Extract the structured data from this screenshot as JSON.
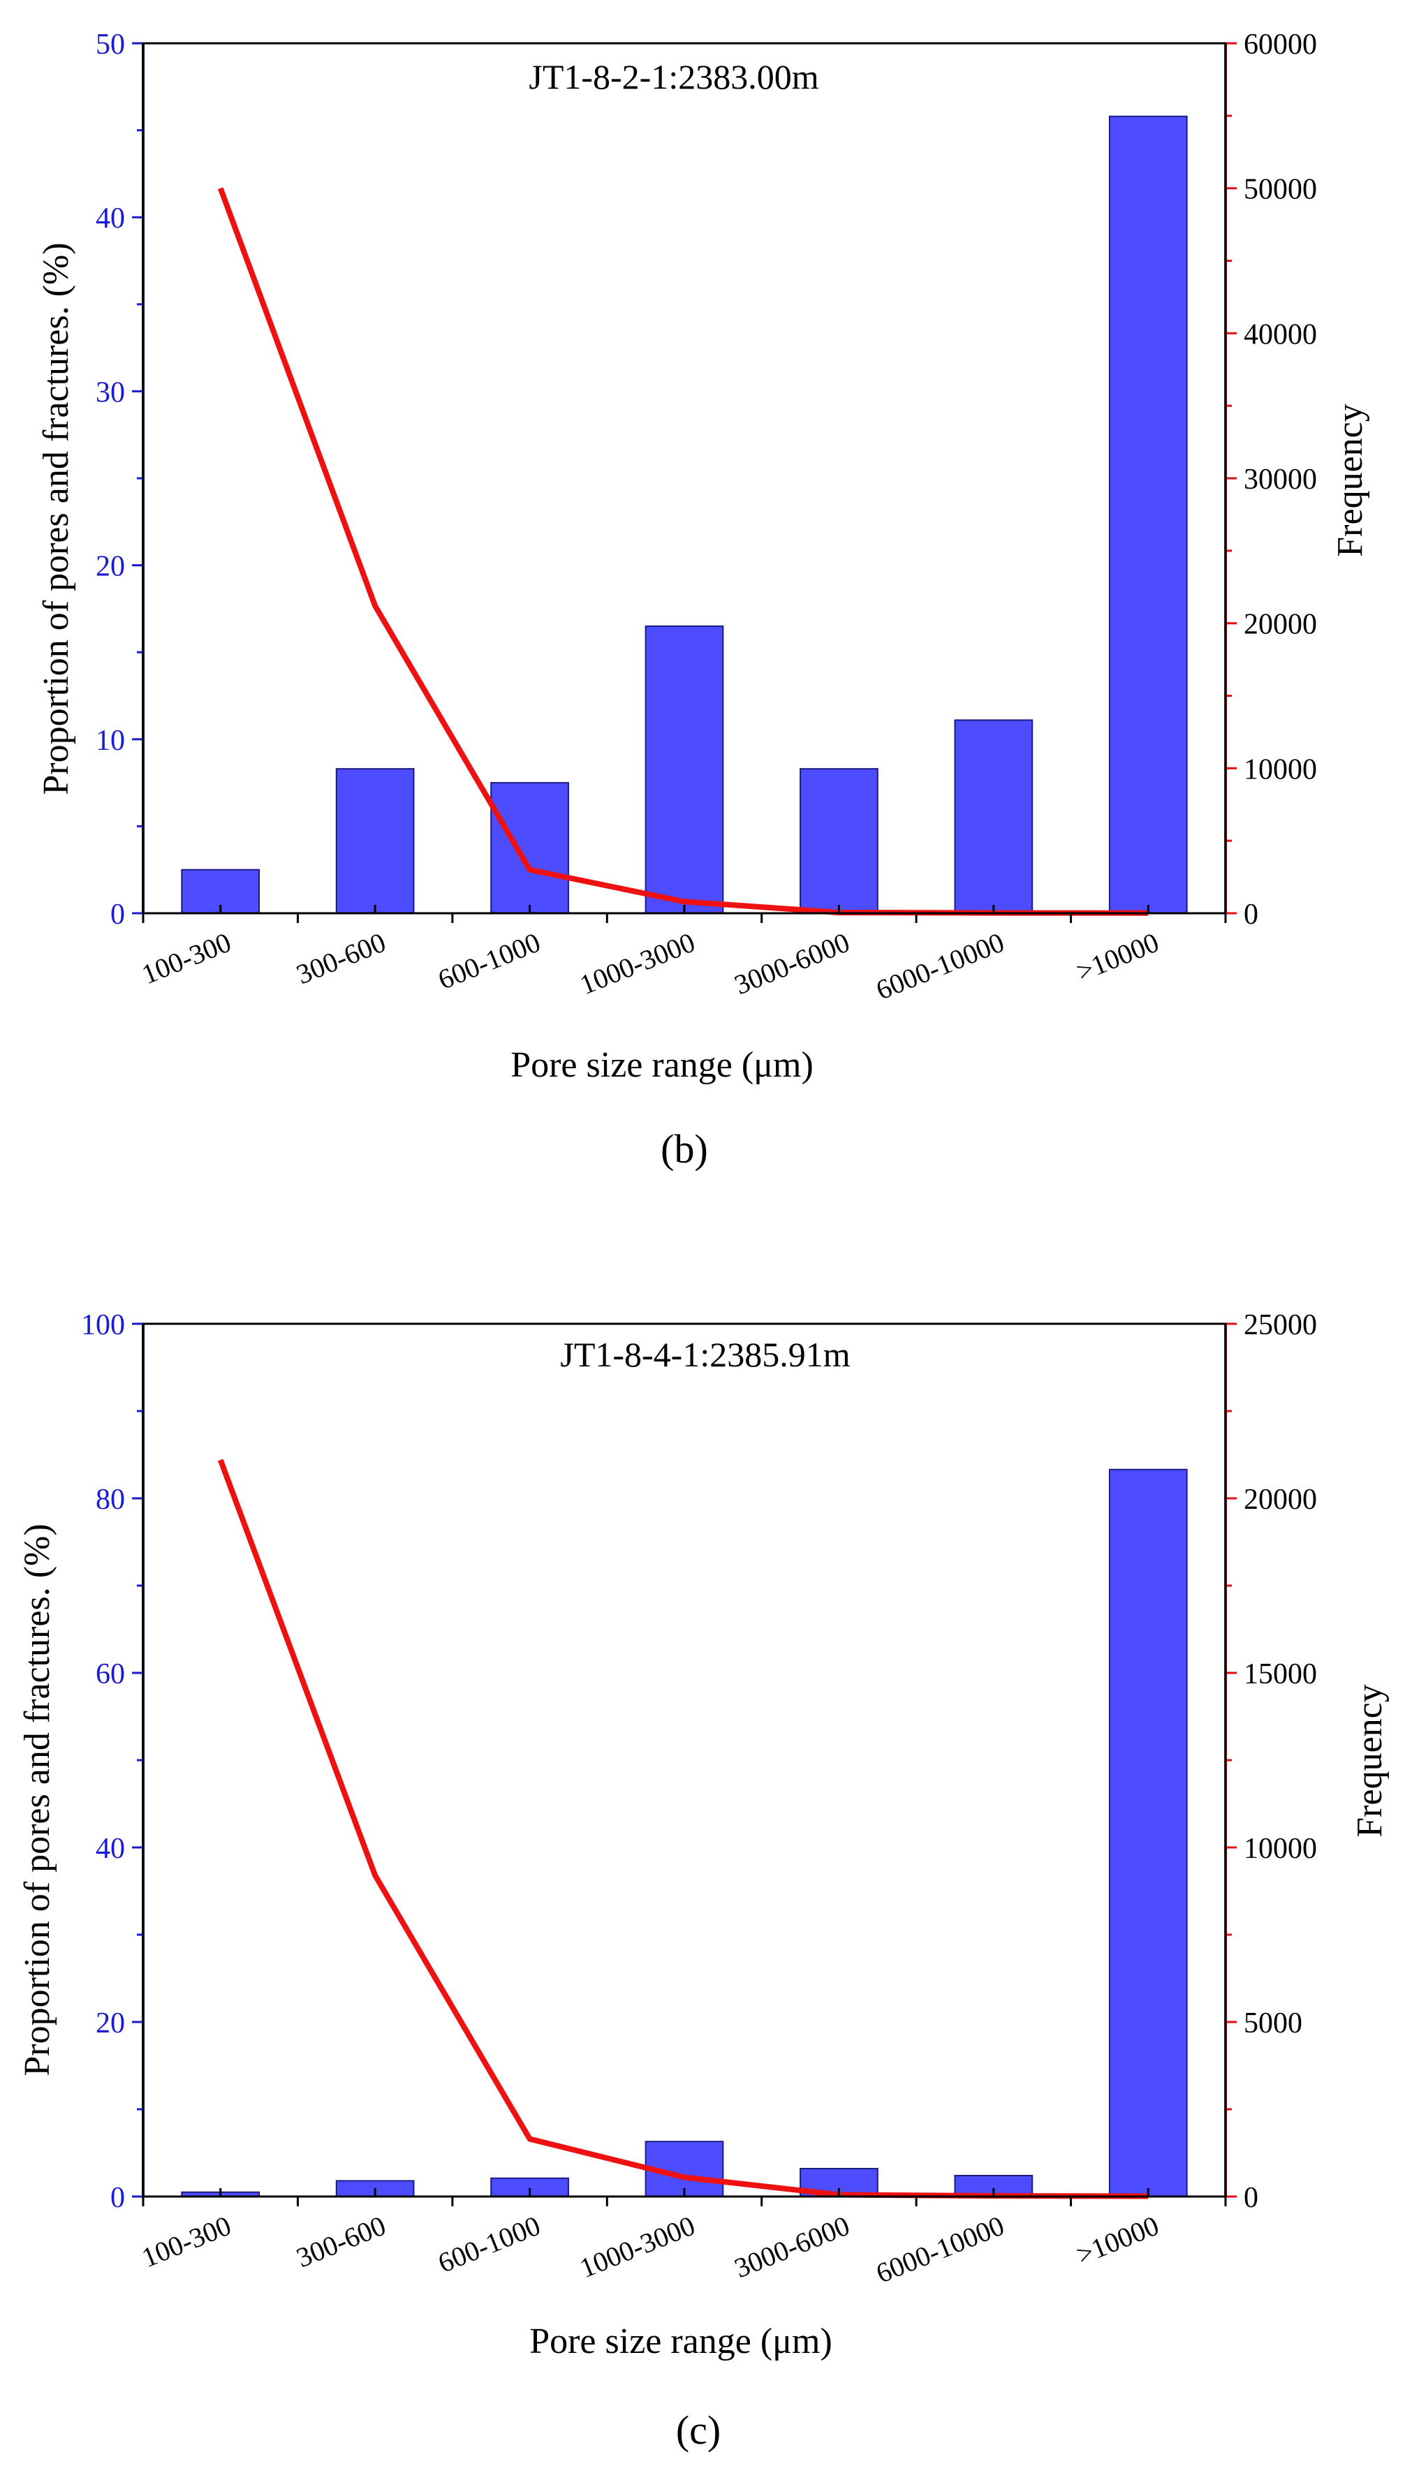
{
  "colors": {
    "bar_fill": "#4d4dff",
    "bar_stroke": "#1a1a80",
    "line": "#ee1111",
    "left_axis": "#1a1ad0",
    "right_axis": "#e01010",
    "frame": "#000000"
  },
  "chart_data": [
    {
      "type": "bar",
      "title": "JT1-8-2-1:2383.00m",
      "panel_label": "(b)",
      "xlabel": "Pore size range (μm)",
      "ylabel": "Proportion of pores and fractures. (%)",
      "y2label": "Frequency",
      "categories": [
        "100-300",
        "300-600",
        "600-1000",
        "1000-3000",
        "3000-6000",
        "6000-10000",
        ">10000"
      ],
      "ylim": [
        0,
        50
      ],
      "yticks": [
        0,
        10,
        20,
        30,
        40,
        50
      ],
      "y2lim": [
        0,
        60000
      ],
      "y2ticks": [
        0,
        10000,
        20000,
        30000,
        40000,
        50000,
        60000
      ],
      "series": [
        {
          "name": "Proportion",
          "kind": "bar",
          "axis": "left",
          "values": [
            2.5,
            8.3,
            7.5,
            16.5,
            8.3,
            11.1,
            45.8
          ]
        },
        {
          "name": "Frequency",
          "kind": "line",
          "axis": "right",
          "values": [
            50000,
            21200,
            3000,
            800,
            50,
            20,
            10
          ]
        }
      ]
    },
    {
      "type": "bar",
      "title": "JT1-8-4-1:2385.91m",
      "panel_label": "(c)",
      "xlabel": "Pore size range (μm)",
      "ylabel": "Proportion of pores and fractures. (%)",
      "y2label": "Frequency",
      "categories": [
        "100-300",
        "300-600",
        "600-1000",
        "1000-3000",
        "3000-6000",
        "6000-10000",
        ">10000"
      ],
      "ylim": [
        0,
        100
      ],
      "yticks": [
        0,
        20,
        40,
        60,
        80,
        100
      ],
      "y2lim": [
        0,
        25000
      ],
      "y2ticks": [
        0,
        5000,
        10000,
        15000,
        20000,
        25000
      ],
      "series": [
        {
          "name": "Proportion",
          "kind": "bar",
          "axis": "left",
          "values": [
            0.5,
            1.8,
            2.1,
            6.3,
            3.2,
            2.4,
            83.3
          ]
        },
        {
          "name": "Frequency",
          "kind": "line",
          "axis": "right",
          "values": [
            21100,
            9200,
            1650,
            550,
            50,
            20,
            10
          ]
        }
      ]
    }
  ]
}
